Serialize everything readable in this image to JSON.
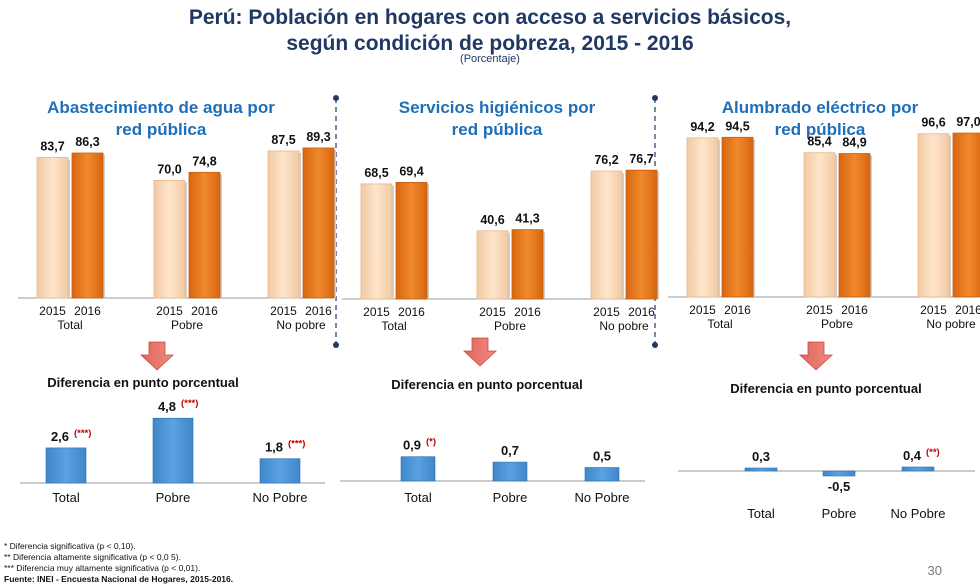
{
  "title": {
    "line1": "Perú: Población en hogares con acceso a servicios básicos,",
    "line2": "según condición de pobreza, 2015 - 2016",
    "unit": "(Porcentaje)"
  },
  "colors": {
    "y2015": "#fbd9b8",
    "y2016": "#ec7a1c",
    "diff": "#4a90d0",
    "star": "#c00000",
    "title": "#1f3864",
    "panel_title": "#1f6fb8"
  },
  "diff_heading": "Diferencia en punto porcentual",
  "chart_data": [
    {
      "type": "bar",
      "title_line1": "Abastecimiento de agua por",
      "title_line2": "red pública",
      "years": [
        "2015",
        "2016"
      ],
      "groups": [
        "Total",
        "Pobre",
        "No pobre"
      ],
      "series": [
        {
          "name": "2015",
          "values": [
            83.7,
            70.0,
            87.5
          ],
          "labels": [
            "83,7",
            "70,0",
            "87,5"
          ]
        },
        {
          "name": "2016",
          "values": [
            86.3,
            74.8,
            89.3
          ],
          "labels": [
            "86,3",
            "74,8",
            "89,3"
          ]
        }
      ],
      "ylim": [
        0,
        100
      ]
    },
    {
      "type": "bar",
      "title_line1": "Servicios higiénicos por",
      "title_line2": "red pública",
      "years": [
        "2015",
        "2016"
      ],
      "groups": [
        "Total",
        "Pobre",
        "No pobre"
      ],
      "series": [
        {
          "name": "2015",
          "values": [
            68.5,
            40.6,
            76.2
          ],
          "labels": [
            "68,5",
            "40,6",
            "76,2"
          ]
        },
        {
          "name": "2016",
          "values": [
            69.4,
            41.3,
            76.7
          ],
          "labels": [
            "69,4",
            "41,3",
            "76,7"
          ]
        }
      ],
      "ylim": [
        0,
        100
      ]
    },
    {
      "type": "bar",
      "title_line1": "Alumbrado eléctrico por",
      "title_line2": "red pública",
      "years": [
        "2015",
        "2016"
      ],
      "groups": [
        "Total",
        "Pobre",
        "No pobre"
      ],
      "series": [
        {
          "name": "2015",
          "values": [
            94.2,
            85.4,
            96.6
          ],
          "labels": [
            "94,2",
            "85,4",
            "96,6"
          ]
        },
        {
          "name": "2016",
          "values": [
            94.5,
            84.9,
            97.0
          ],
          "labels": [
            "94,5",
            "84,9",
            "97,0"
          ]
        }
      ],
      "ylim": [
        0,
        100
      ]
    },
    {
      "type": "bar",
      "title": "Diferencia en punto porcentual",
      "categories": [
        "Total",
        "Pobre",
        "No Pobre"
      ],
      "values": [
        2.6,
        4.8,
        1.8
      ],
      "labels": [
        "2,6",
        "4,8",
        "1,8"
      ],
      "stars": [
        "(***)",
        "(***)",
        "(***)"
      ]
    },
    {
      "type": "bar",
      "title": "Diferencia en punto porcentual",
      "categories": [
        "Total",
        "Pobre",
        "No Pobre"
      ],
      "values": [
        0.9,
        0.7,
        0.5
      ],
      "labels": [
        "0,9",
        "0,7",
        "0,5"
      ],
      "stars": [
        "(*)",
        "",
        ""
      ]
    },
    {
      "type": "bar",
      "title": "Diferencia en punto porcentual",
      "categories": [
        "Total",
        "Pobre",
        "No Pobre"
      ],
      "values": [
        0.3,
        -0.5,
        0.4
      ],
      "labels": [
        "0,3",
        "-0,5",
        "0,4"
      ],
      "stars": [
        "",
        "",
        "(**)"
      ]
    }
  ],
  "footnotes": {
    "n1": "* Diferencia significativa (p <  0,10).",
    "n2": "** Diferencia altamente significativa (p < 0,0 5).",
    "n3": "*** Diferencia muy altamente significativa (p < 0,01).",
    "source": "Fuente: INEI - Encuesta Nacional de Hogares, 2015-2016."
  },
  "page_number": "30"
}
